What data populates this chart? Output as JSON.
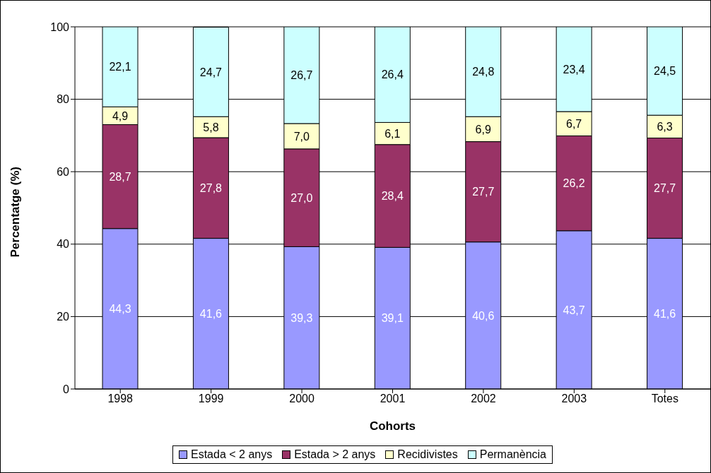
{
  "chart_data": {
    "type": "bar",
    "stacked": true,
    "xlabel": "Cohorts",
    "ylabel": "Percentatge (%)",
    "categories": [
      "1998",
      "1999",
      "2000",
      "2001",
      "2002",
      "2003",
      "Totes"
    ],
    "series": [
      {
        "name": "Estada < 2 anys",
        "color": "#9999ff",
        "values": [
          44.3,
          41.6,
          39.3,
          39.1,
          40.6,
          43.7,
          41.6
        ],
        "value_labels": [
          "44,3",
          "41,6",
          "39,3",
          "39,1",
          "40,6",
          "43,7",
          "41,6"
        ]
      },
      {
        "name": "Estada > 2 anys",
        "color": "#993366",
        "values": [
          28.7,
          27.8,
          27.0,
          28.4,
          27.7,
          26.2,
          27.7
        ],
        "value_labels": [
          "28,7",
          "27,8",
          "27,0",
          "28,4",
          "27,7",
          "26,2",
          "27,7"
        ]
      },
      {
        "name": "Recidivistes",
        "color": "#ffffcc",
        "values": [
          4.9,
          5.8,
          7.0,
          6.1,
          6.9,
          6.7,
          6.3
        ],
        "value_labels": [
          "4,9",
          "5,8",
          "7,0",
          "6,1",
          "6,9",
          "6,7",
          "6,3"
        ]
      },
      {
        "name": "Permanència",
        "color": "#ccffff",
        "values": [
          22.1,
          24.7,
          26.7,
          26.4,
          24.8,
          23.4,
          24.5
        ],
        "value_labels": [
          "22,1",
          "24,7",
          "26,7",
          "26,4",
          "24,8",
          "23,4",
          "24,5"
        ]
      }
    ],
    "ylim": [
      0,
      100
    ],
    "yticks": [
      0,
      20,
      40,
      60,
      80,
      100
    ],
    "grid": "y",
    "legend": "bottom"
  }
}
